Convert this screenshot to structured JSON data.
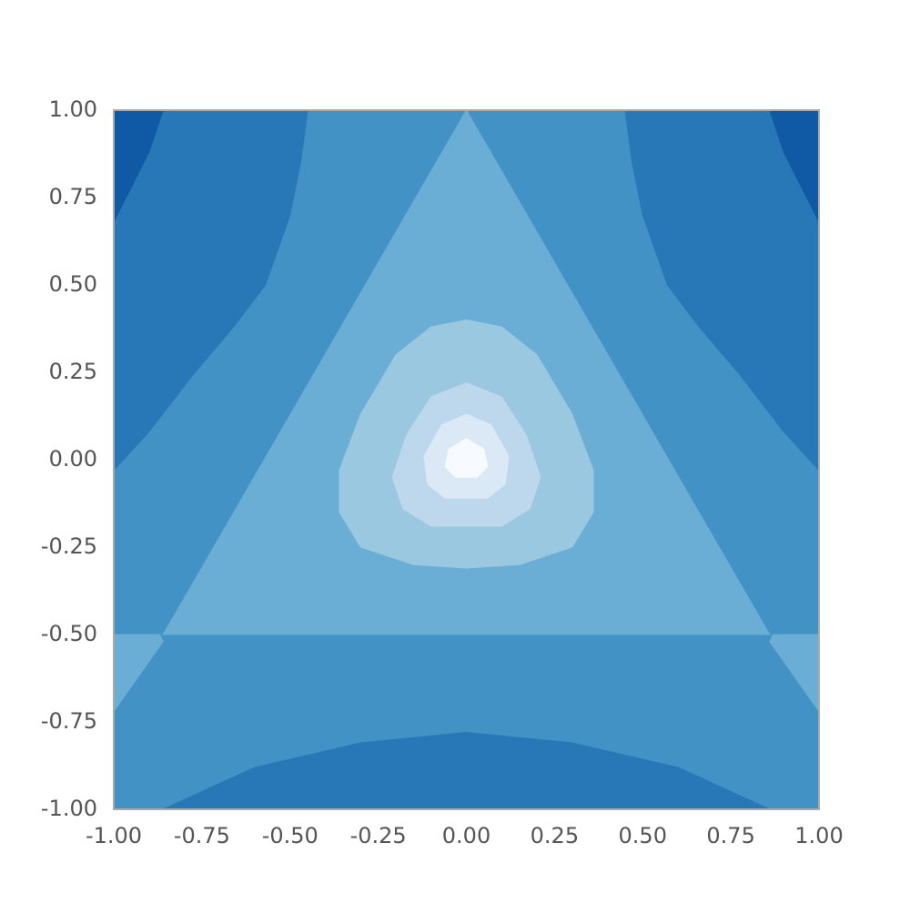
{
  "chart_data": {
    "type": "contourf",
    "xlim": [
      -1,
      1
    ],
    "ylim": [
      -1,
      1
    ],
    "xticks": [
      {
        "value": -1,
        "label": "-1.00"
      },
      {
        "value": -0.75,
        "label": "-0.75"
      },
      {
        "value": -0.5,
        "label": "-0.50"
      },
      {
        "value": -0.25,
        "label": "-0.25"
      },
      {
        "value": 0,
        "label": "0.00"
      },
      {
        "value": 0.25,
        "label": "0.25"
      },
      {
        "value": 0.5,
        "label": "0.50"
      },
      {
        "value": 0.75,
        "label": "0.75"
      },
      {
        "value": 1,
        "label": "1.00"
      }
    ],
    "yticks": [
      {
        "value": -1,
        "label": "-1.00"
      },
      {
        "value": -0.75,
        "label": "-0.75"
      },
      {
        "value": -0.5,
        "label": "-0.50"
      },
      {
        "value": -0.25,
        "label": "-0.25"
      },
      {
        "value": 0,
        "label": "0.00"
      },
      {
        "value": 0.25,
        "label": "0.25"
      },
      {
        "value": 0.5,
        "label": "0.50"
      },
      {
        "value": 0.75,
        "label": "0.75"
      },
      {
        "value": 1,
        "label": "1.00"
      }
    ],
    "regions": [
      {
        "color": "#4292c6",
        "points": [
          [
            -1,
            -1
          ],
          [
            1,
            -1
          ],
          [
            1,
            1
          ],
          [
            -1,
            1
          ]
        ]
      },
      {
        "color": "#2878b8",
        "points": [
          [
            -1,
            1
          ],
          [
            -0.45,
            1
          ],
          [
            -0.47,
            0.85
          ],
          [
            -0.5,
            0.7
          ],
          [
            -0.57,
            0.5
          ],
          [
            -0.66,
            0.38
          ],
          [
            -0.77,
            0.25
          ],
          [
            -0.9,
            0.08
          ],
          [
            -1,
            -0.03
          ]
        ]
      },
      {
        "color": "#2878b8",
        "points": [
          [
            1,
            1
          ],
          [
            0.45,
            1
          ],
          [
            0.47,
            0.85
          ],
          [
            0.5,
            0.7
          ],
          [
            0.57,
            0.5
          ],
          [
            0.66,
            0.38
          ],
          [
            0.77,
            0.25
          ],
          [
            0.9,
            0.08
          ],
          [
            1,
            -0.03
          ]
        ]
      },
      {
        "color": "#1059a5",
        "points": [
          [
            -1,
            1
          ],
          [
            -0.86,
            1
          ],
          [
            -0.9,
            0.88
          ],
          [
            -0.95,
            0.78
          ],
          [
            -1,
            0.68
          ]
        ]
      },
      {
        "color": "#1059a5",
        "points": [
          [
            1,
            1
          ],
          [
            0.86,
            1
          ],
          [
            0.9,
            0.88
          ],
          [
            0.95,
            0.78
          ],
          [
            1,
            0.68
          ]
        ]
      },
      {
        "color": "#2878b8",
        "points": [
          [
            -0.86,
            -1
          ],
          [
            -0.6,
            -0.88
          ],
          [
            -0.3,
            -0.81
          ],
          [
            0,
            -0.78
          ],
          [
            0.3,
            -0.81
          ],
          [
            0.6,
            -0.88
          ],
          [
            0.86,
            -1
          ]
        ]
      },
      {
        "color": "#6aaed6",
        "points": [
          [
            0,
            1
          ],
          [
            -0.86,
            -0.5
          ],
          [
            0.86,
            -0.5
          ]
        ]
      },
      {
        "color": "#6aaed6",
        "points": [
          [
            -1,
            -0.5
          ],
          [
            -0.87,
            -0.5
          ],
          [
            -0.86,
            -0.52
          ],
          [
            -1,
            -0.72
          ]
        ]
      },
      {
        "color": "#6aaed6",
        "points": [
          [
            1,
            -0.5
          ],
          [
            0.87,
            -0.5
          ],
          [
            0.86,
            -0.52
          ],
          [
            1,
            -0.72
          ]
        ]
      },
      {
        "color": "#9ac8e0",
        "points": [
          [
            0,
            0.4
          ],
          [
            -0.1,
            0.38
          ],
          [
            -0.2,
            0.3
          ],
          [
            -0.3,
            0.13
          ],
          [
            -0.36,
            -0.03
          ],
          [
            -0.36,
            -0.15
          ],
          [
            -0.3,
            -0.25
          ],
          [
            -0.15,
            -0.3
          ],
          [
            0,
            -0.31
          ],
          [
            0.15,
            -0.3
          ],
          [
            0.3,
            -0.25
          ],
          [
            0.36,
            -0.15
          ],
          [
            0.36,
            -0.03
          ],
          [
            0.3,
            0.13
          ],
          [
            0.2,
            0.3
          ],
          [
            0.1,
            0.38
          ]
        ]
      },
      {
        "color": "#bdd7ec",
        "points": [
          [
            0,
            0.22
          ],
          [
            -0.1,
            0.18
          ],
          [
            -0.17,
            0.07
          ],
          [
            -0.21,
            -0.05
          ],
          [
            -0.18,
            -0.14
          ],
          [
            -0.1,
            -0.19
          ],
          [
            0,
            -0.19
          ],
          [
            0.1,
            -0.19
          ],
          [
            0.18,
            -0.14
          ],
          [
            0.21,
            -0.05
          ],
          [
            0.17,
            0.07
          ],
          [
            0.1,
            0.18
          ]
        ]
      },
      {
        "color": "#dbe9f6",
        "points": [
          [
            0,
            0.13
          ],
          [
            -0.07,
            0.1
          ],
          [
            -0.12,
            0.01
          ],
          [
            -0.11,
            -0.07
          ],
          [
            -0.06,
            -0.11
          ],
          [
            0,
            -0.11
          ],
          [
            0.06,
            -0.11
          ],
          [
            0.11,
            -0.07
          ],
          [
            0.12,
            0.01
          ],
          [
            0.07,
            0.1
          ]
        ]
      },
      {
        "color": "#f7fbff",
        "points": [
          [
            0,
            0.06
          ],
          [
            -0.05,
            0.03
          ],
          [
            -0.06,
            -0.02
          ],
          [
            -0.03,
            -0.05
          ],
          [
            0,
            -0.05
          ],
          [
            0.03,
            -0.05
          ],
          [
            0.06,
            -0.02
          ],
          [
            0.05,
            0.03
          ]
        ]
      }
    ]
  }
}
